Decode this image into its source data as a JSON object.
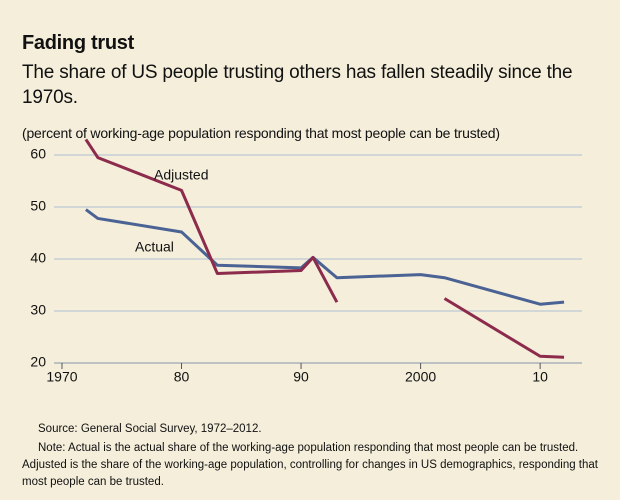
{
  "chart_data": {
    "type": "line",
    "title": "Fading trust",
    "subtitle": "The share of US people trusting others has fallen steadily since the 1970s.",
    "y_label": "(percent of working-age population responding that most people can be trusted)",
    "source": "Source: General Social Survey, 1972–2012.",
    "note": "Note: Actual is the actual share of the working-age population responding that most people can be trusted. Adjusted is the share of the working-age population, controlling for changes in US demographics, responding that most people can be trusted.",
    "x": [
      1972,
      1973,
      1980,
      1983,
      1990,
      1991,
      1993,
      2000,
      2002,
      2010,
      2012
    ],
    "series": [
      {
        "name": "Actual",
        "color": "#4a6294",
        "values": [
          49.5,
          47.8,
          45.2,
          38.8,
          38.3,
          40.3,
          36.4,
          37.0,
          36.4,
          31.3,
          31.7
        ]
      },
      {
        "name": "Adjusted",
        "color": "#8c2b4b",
        "values": [
          63.0,
          59.5,
          53.2,
          37.2,
          37.8,
          40.3,
          31.7,
          null,
          32.4,
          21.3,
          21.1
        ]
      }
    ],
    "xlim": [
      1969.5,
      2013
    ],
    "ylim": [
      20,
      63
    ],
    "xticks": [
      1970,
      {
        "value": 1980,
        "label": "80"
      },
      {
        "value": 1990,
        "label": "90"
      },
      2000,
      {
        "value": 2010,
        "label": "10"
      }
    ],
    "yticks": [
      20,
      30,
      40,
      50,
      60
    ],
    "grid": true
  }
}
